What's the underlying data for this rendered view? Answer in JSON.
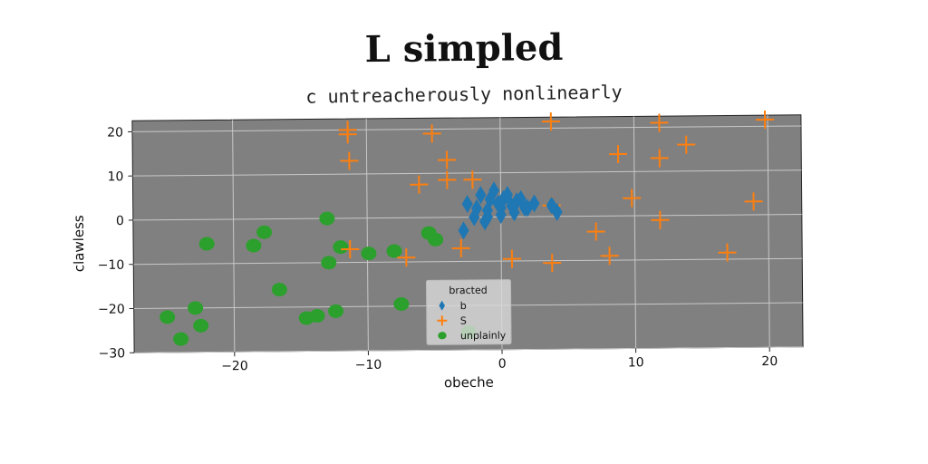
{
  "chart_data": {
    "type": "scatter",
    "title": "L simpled",
    "subtitle": "c untreacherously nonlinearly",
    "xlabel": "obeche",
    "ylabel": "clawless",
    "xlim": [
      -27.5,
      22.5
    ],
    "ylim": [
      -30,
      22.5
    ],
    "xticks": [
      -20,
      -10,
      0,
      10,
      20
    ],
    "yticks": [
      -30,
      -20,
      -10,
      0,
      10,
      20
    ],
    "xtick_labels": [
      "−20",
      "−10",
      "0",
      "10",
      "20"
    ],
    "ytick_labels": [
      "−30",
      "−20",
      "−10",
      "0",
      "10",
      "20"
    ],
    "grid": true,
    "legend": {
      "title": "bracted",
      "position": "lower-center"
    },
    "series": [
      {
        "name": "b",
        "marker": "diamond",
        "color": "#1f77b4",
        "points": [
          [
            -2.5,
            3
          ],
          [
            -1.5,
            5
          ],
          [
            -0.5,
            6
          ],
          [
            0.5,
            5
          ],
          [
            1.5,
            4
          ],
          [
            -1,
            1.5
          ],
          [
            -0.2,
            3
          ],
          [
            0.8,
            2.5
          ],
          [
            1.8,
            2
          ],
          [
            2.5,
            3
          ],
          [
            -1.8,
            2
          ],
          [
            -2.8,
            -3
          ],
          [
            -2,
            0
          ],
          [
            -1,
            0
          ],
          [
            0,
            0.5
          ],
          [
            1,
            1
          ],
          [
            2,
            2
          ],
          [
            3.8,
            2.5
          ],
          [
            -1.2,
            -1
          ],
          [
            0.2,
            4
          ],
          [
            4.2,
            1
          ],
          [
            -0.8,
            4
          ],
          [
            1.2,
            3.5
          ],
          [
            0,
            2
          ]
        ]
      },
      {
        "name": "S",
        "marker": "plus",
        "color": "#ff7f0e",
        "points": [
          [
            -11.4,
            20
          ],
          [
            -11.4,
            19
          ],
          [
            -11.3,
            13
          ],
          [
            -5.1,
            19
          ],
          [
            -4,
            13
          ],
          [
            -4,
            8.5
          ],
          [
            -2.1,
            8.5
          ],
          [
            -6.1,
            7.5
          ],
          [
            -3,
            -7
          ],
          [
            -11.3,
            -7
          ],
          [
            -7.1,
            -9
          ],
          [
            0.8,
            -9.5
          ],
          [
            3.8,
            -10.5
          ],
          [
            3.8,
            2.5
          ],
          [
            3.8,
            21.5
          ],
          [
            7.1,
            -3.5
          ],
          [
            8.1,
            -9
          ],
          [
            8.8,
            14
          ],
          [
            9.8,
            4
          ],
          [
            11.9,
            21
          ],
          [
            11.9,
            13
          ],
          [
            11.9,
            -1
          ],
          [
            13.9,
            16
          ],
          [
            16.9,
            -8.5
          ],
          [
            18.9,
            3
          ],
          [
            19.8,
            21.5
          ]
        ]
      },
      {
        "name": "unplainly",
        "marker": "circle",
        "color": "#2ca02c",
        "points": [
          [
            -25,
            -22
          ],
          [
            -24,
            -27
          ],
          [
            -22.9,
            -20
          ],
          [
            -22.5,
            -24
          ],
          [
            -22,
            -5.5
          ],
          [
            -18.5,
            -6
          ],
          [
            -17.7,
            -3
          ],
          [
            -16.6,
            -16
          ],
          [
            -14.6,
            -22.5
          ],
          [
            -13.8,
            -22
          ],
          [
            -13,
            0
          ],
          [
            -12.9,
            -10
          ],
          [
            -12.4,
            -21
          ],
          [
            -12,
            -6.5
          ],
          [
            -9.9,
            -8
          ],
          [
            -8,
            -7.5
          ],
          [
            -7.5,
            -19.5
          ],
          [
            -5.4,
            -3.5
          ],
          [
            -4.9,
            -5
          ],
          [
            -2.5,
            -26
          ]
        ]
      }
    ]
  }
}
